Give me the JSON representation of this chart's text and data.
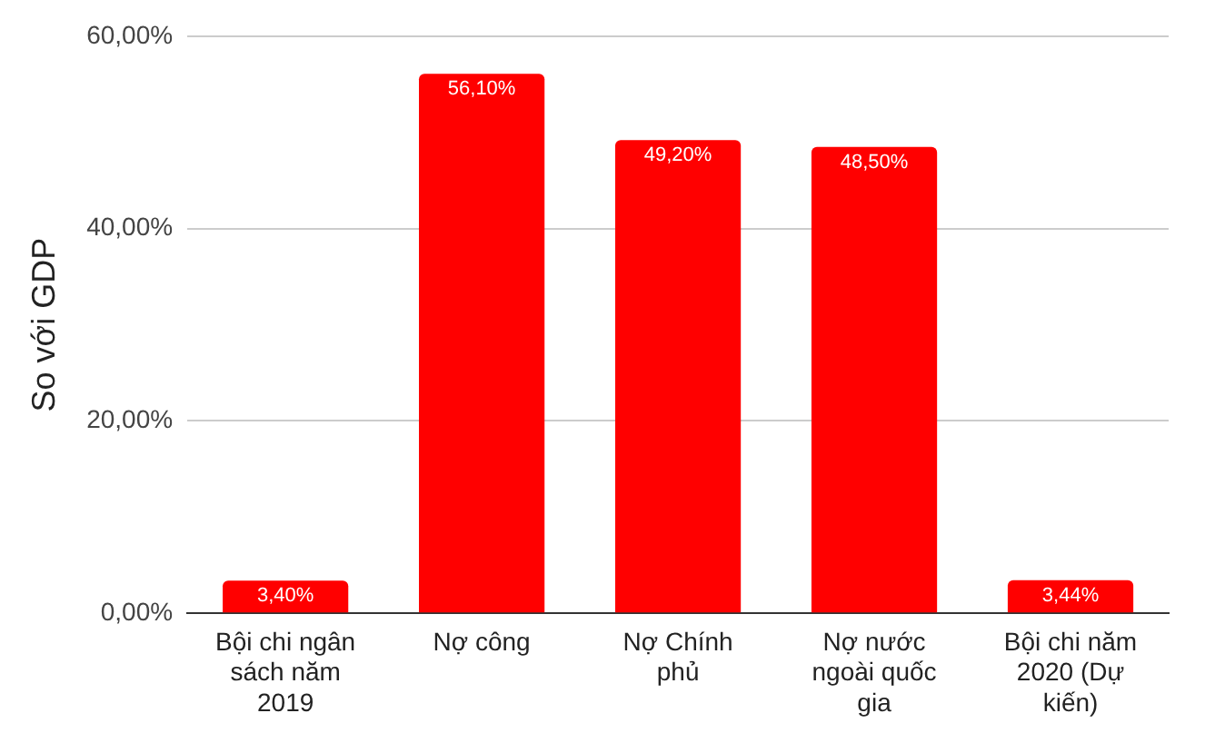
{
  "chart_data": {
    "type": "bar",
    "ylabel": "So với GDP",
    "categories": [
      "Bội chi ngân sách năm 2019",
      "Nợ công",
      "Nợ Chính phủ",
      "Nợ nước ngoài quốc gia",
      "Bội chi năm 2020 (Dự kiến)"
    ],
    "values": [
      3.4,
      56.1,
      49.2,
      48.5,
      3.44
    ],
    "value_labels": [
      "3,40%",
      "56,10%",
      "49,20%",
      "48,50%",
      "3,44%"
    ],
    "color": "#ff0000",
    "ylim": [
      0,
      60
    ],
    "yticks": [
      {
        "value": 0,
        "label": "0,00%"
      },
      {
        "value": 20,
        "label": "20,00%"
      },
      {
        "value": 40,
        "label": "40,00%"
      },
      {
        "value": 60,
        "label": "60,00%"
      }
    ],
    "grid": "y"
  }
}
